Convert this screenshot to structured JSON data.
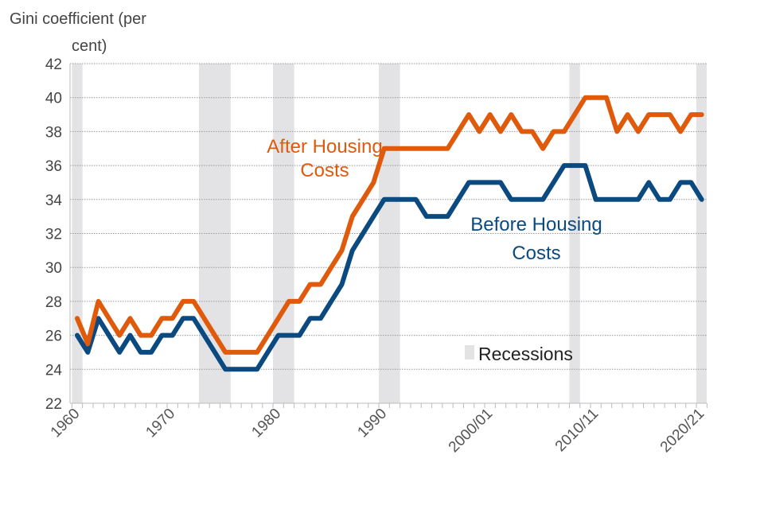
{
  "chart_data": {
    "type": "line",
    "title": "",
    "ylabel": "Gini coefficient (per cent)",
    "ylabel_lines": [
      "Gini coefficient (per",
      "cent)"
    ],
    "xlabel": "",
    "ylim": [
      22,
      42
    ],
    "yticks": [
      22,
      24,
      26,
      28,
      30,
      32,
      34,
      36,
      38,
      40,
      42
    ],
    "grid": true,
    "xtick_labels": [
      {
        "label": "1960",
        "year": 1961
      },
      {
        "label": "1970",
        "year": 1970
      },
      {
        "label": "1980",
        "year": 1980
      },
      {
        "label": "1990",
        "year": 1990
      },
      {
        "label": "2000/01",
        "year": 2000
      },
      {
        "label": "2010/11",
        "year": 2010
      },
      {
        "label": "2020/21",
        "year": 2020
      }
    ],
    "x": [
      1961,
      1962,
      1963,
      1964,
      1965,
      1966,
      1967,
      1968,
      1969,
      1970,
      1971,
      1972,
      1973,
      1974,
      1975,
      1976,
      1977,
      1978,
      1979,
      1980,
      1981,
      1982,
      1983,
      1984,
      1985,
      1986,
      1987,
      1988,
      1989,
      1990,
      1991,
      1992,
      1993,
      1994,
      1995,
      1996,
      1997,
      1998,
      1999,
      2000,
      2001,
      2002,
      2003,
      2004,
      2005,
      2006,
      2007,
      2008,
      2009,
      2010,
      2011,
      2012,
      2013,
      2014,
      2015,
      2016,
      2017,
      2018,
      2019,
      2020
    ],
    "series": [
      {
        "name": "After Housing Costs",
        "name_lines": [
          "After Housing",
          "Costs"
        ],
        "color": "#E05A0C",
        "values": [
          27,
          25.5,
          28,
          27,
          26,
          27,
          26,
          26,
          27,
          27,
          28,
          28,
          27,
          26,
          25,
          25,
          25,
          25,
          26,
          27,
          28,
          28,
          29,
          29,
          30,
          31,
          33,
          34,
          35,
          37,
          37,
          37,
          37,
          37,
          37,
          37,
          38,
          39,
          38,
          39,
          38,
          39,
          38,
          38,
          37,
          38,
          38,
          39,
          40,
          40,
          40,
          38,
          39,
          38,
          39,
          39,
          39,
          38,
          39,
          39
        ]
      },
      {
        "name": "Before Housing Costs",
        "name_lines": [
          "Before Housing",
          "Costs"
        ],
        "color": "#0B4A80",
        "values": [
          26,
          25,
          27,
          26,
          25,
          26,
          25,
          25,
          26,
          26,
          27,
          27,
          26,
          25,
          24,
          24,
          24,
          24,
          25,
          26,
          26,
          26,
          27,
          27,
          28,
          29,
          31,
          32,
          33,
          34,
          34,
          34,
          34,
          33,
          33,
          33,
          34,
          35,
          35,
          35,
          35,
          34,
          34,
          34,
          34,
          35,
          36,
          36,
          36,
          34,
          34,
          34,
          34,
          34,
          35,
          34,
          34,
          35,
          35,
          34
        ]
      }
    ],
    "recessions": {
      "label": "Recessions",
      "color": "#E3E3E6",
      "periods": [
        [
          1960.5,
          1961.5
        ],
        [
          1972.5,
          1975.5
        ],
        [
          1979.5,
          1981.5
        ],
        [
          1989.5,
          1991.5
        ],
        [
          2007.5,
          2008.5
        ],
        [
          2019.5,
          2020.5
        ]
      ]
    }
  }
}
